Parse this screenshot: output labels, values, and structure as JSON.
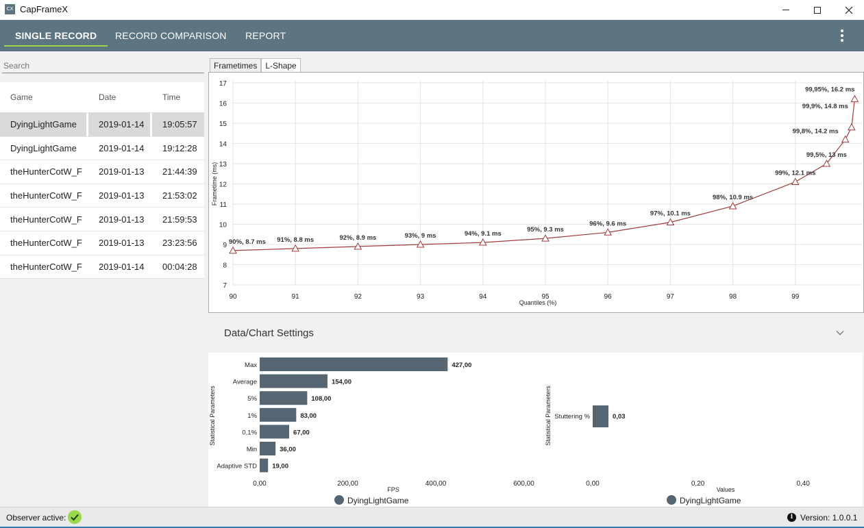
{
  "window": {
    "title": "CapFrameX",
    "icon_text": "CX"
  },
  "nav": {
    "tabs": [
      {
        "label": "SINGLE RECORD",
        "active": true
      },
      {
        "label": "RECORD COMPARISON",
        "active": false
      },
      {
        "label": "REPORT",
        "active": false
      }
    ],
    "menu_icon": "kebab-menu-icon"
  },
  "sidebar": {
    "search_placeholder": "Search",
    "columns": [
      "Game",
      "Date",
      "Time"
    ],
    "rows": [
      {
        "game": "DyingLightGame",
        "date": "2019-01-14",
        "time": "19:05:57",
        "selected": true
      },
      {
        "game": "DyingLightGame",
        "date": "2019-01-14",
        "time": "19:12:28"
      },
      {
        "game": "theHunterCotW_F",
        "date": "2019-01-13",
        "time": "21:44:39"
      },
      {
        "game": "theHunterCotW_F",
        "date": "2019-01-13",
        "time": "21:53:02"
      },
      {
        "game": "theHunterCotW_F",
        "date": "2019-01-13",
        "time": "21:59:53"
      },
      {
        "game": "theHunterCotW_F",
        "date": "2019-01-13",
        "time": "23:23:56"
      },
      {
        "game": "theHunterCotW_F",
        "date": "2019-01-14",
        "time": "00:04:28"
      }
    ]
  },
  "chart_tabs": [
    {
      "label": "Frametimes",
      "active": false
    },
    {
      "label": "L-Shape",
      "active": true
    }
  ],
  "settings": {
    "label": "Data/Chart Settings",
    "icon": "chevron-down-icon"
  },
  "status": {
    "observer_label": "Observer active:",
    "observer_icon": "checkmark-icon",
    "info_icon": "info-icon",
    "version_label": "Version:",
    "version": "1.0.0.1"
  },
  "colors": {
    "accent": "#5d7481",
    "active_underline": "#9bd84a",
    "line": "#a33a3a",
    "bar": "#556672"
  },
  "chart_data": [
    {
      "type": "line",
      "title": "",
      "xlabel": "Quantiles (%)",
      "ylabel": "Frametime (ms)",
      "xlim": [
        90,
        100
      ],
      "ylim": [
        7,
        17
      ],
      "xticks": [
        "90",
        "91",
        "92",
        "93",
        "94",
        "95",
        "96",
        "97",
        "98",
        "99"
      ],
      "yticks": [
        "7",
        "8",
        "9",
        "10",
        "11",
        "12",
        "13",
        "14",
        "15",
        "16",
        "17"
      ],
      "grid": true,
      "series": [
        {
          "points": [
            {
              "x": 90,
              "y": 8.7,
              "label": "90%, 8.7 ms"
            },
            {
              "x": 91,
              "y": 8.8,
              "label": "91%, 8.8 ms"
            },
            {
              "x": 92,
              "y": 8.9,
              "label": "92%, 8.9 ms"
            },
            {
              "x": 93,
              "y": 9.0,
              "label": "93%, 9 ms"
            },
            {
              "x": 94,
              "y": 9.1,
              "label": "94%, 9.1 ms"
            },
            {
              "x": 95,
              "y": 9.3,
              "label": "95%, 9.3 ms"
            },
            {
              "x": 96,
              "y": 9.6,
              "label": "96%, 9.6 ms"
            },
            {
              "x": 97,
              "y": 10.1,
              "label": "97%, 10.1 ms"
            },
            {
              "x": 98,
              "y": 10.9,
              "label": "98%, 10.9 ms"
            },
            {
              "x": 99,
              "y": 12.1,
              "label": "99%, 12.1 ms"
            },
            {
              "x": 99.5,
              "y": 13.0,
              "label": "99,5%, 13 ms"
            },
            {
              "x": 99.8,
              "y": 14.2,
              "label": "99,8%, 14.2 ms"
            },
            {
              "x": 99.9,
              "y": 14.8,
              "label": "99,9%, 14.8 ms"
            },
            {
              "x": 99.95,
              "y": 16.2,
              "label": "99,95%, 16.2 ms"
            }
          ]
        }
      ]
    },
    {
      "type": "bar",
      "orientation": "horizontal",
      "ylabel": "Statistical Parameters",
      "xlabel": "FPS",
      "xlim": [
        0,
        800
      ],
      "xticks": [
        "0,00",
        "200,00",
        "400,00",
        "600,00"
      ],
      "categories": [
        "Max",
        "Average",
        "5%",
        "1%",
        "0,1%",
        "Min",
        "Adaptive STD"
      ],
      "values": [
        427,
        154,
        108,
        83,
        67,
        36,
        19
      ],
      "value_labels": [
        "427,00",
        "154,00",
        "108,00",
        "83,00",
        "67,00",
        "36,00",
        "19,00"
      ],
      "legend": "DyingLightGame",
      "legend_position": "bottom"
    },
    {
      "type": "bar",
      "orientation": "horizontal",
      "ylabel": "Statistical Parameters",
      "xlabel": "Values",
      "xlim": [
        0,
        0.5
      ],
      "xticks": [
        "0,00",
        "0,20",
        "0,40"
      ],
      "categories": [
        "Stuttering %"
      ],
      "values": [
        0.03
      ],
      "value_labels": [
        "0,03"
      ],
      "legend": "DyingLightGame",
      "legend_position": "bottom"
    }
  ]
}
